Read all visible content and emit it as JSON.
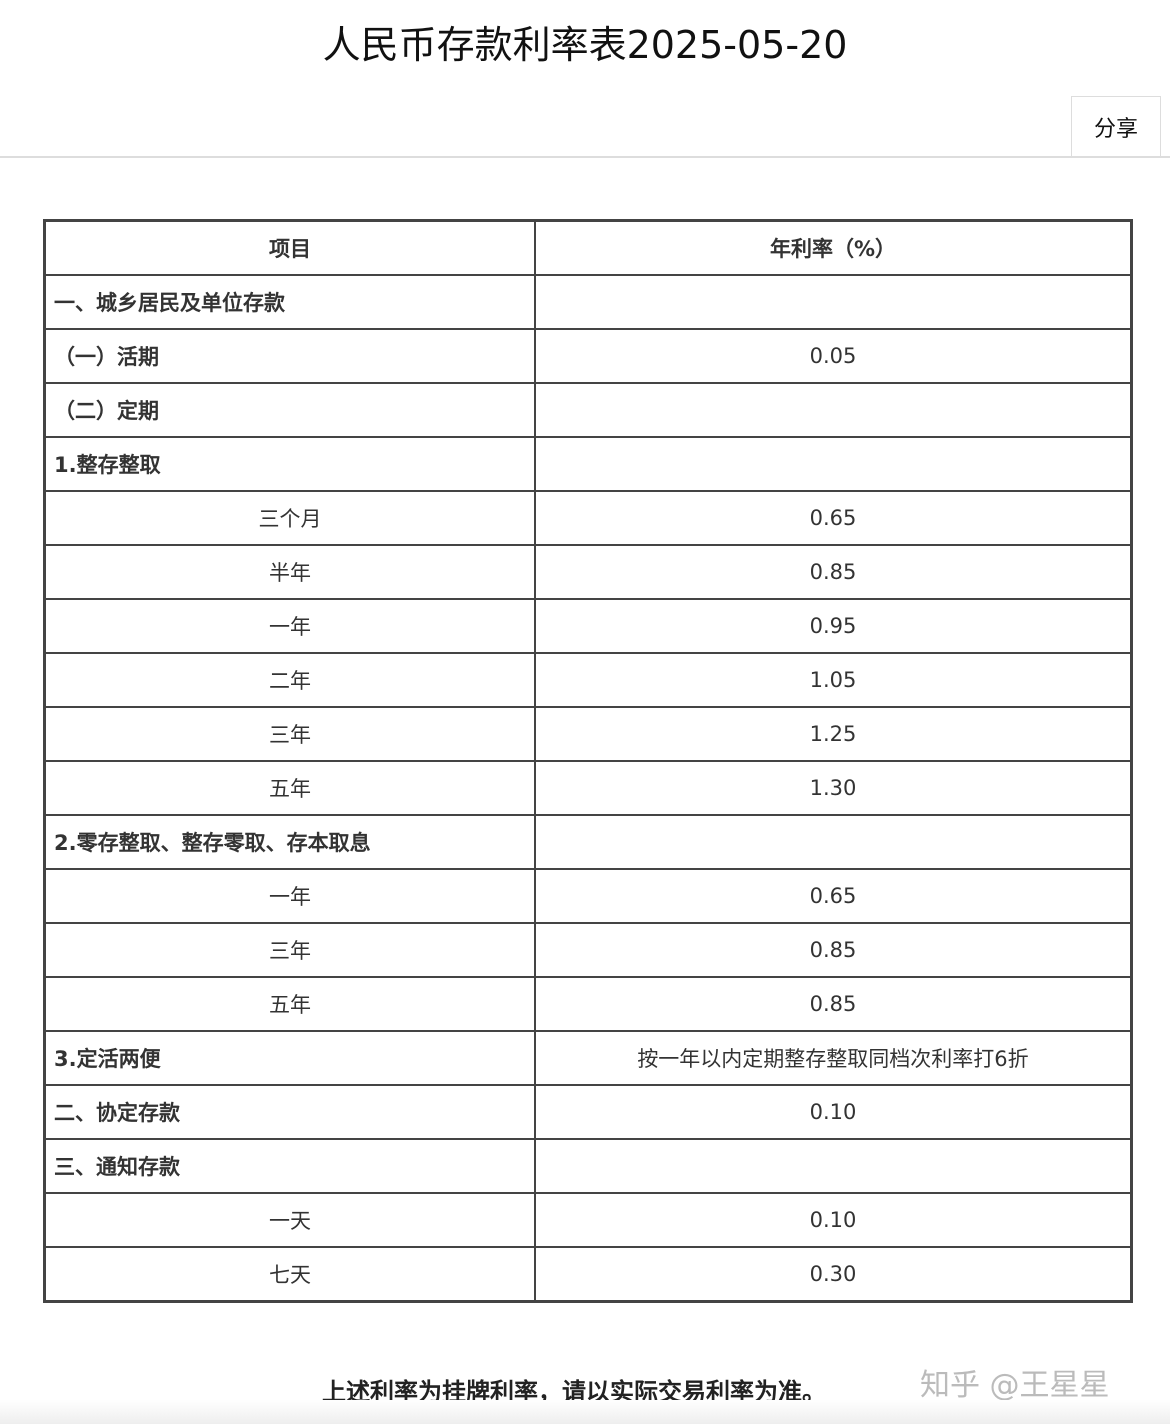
{
  "title": "人民币存款利率表2025-05-20",
  "share_label": "分享",
  "table": {
    "headers": [
      "项目",
      "年利率（%）"
    ],
    "rows": [
      {
        "item": "一、城乡居民及单位存款",
        "rate": "",
        "bold": true
      },
      {
        "item": "（一）活期",
        "rate": "0.05",
        "bold": true
      },
      {
        "item": "（二）定期",
        "rate": "",
        "bold": true
      },
      {
        "item": "1.整存整取",
        "rate": "",
        "bold": true
      },
      {
        "item": "三个月",
        "rate": "0.65",
        "bold": false
      },
      {
        "item": "半年",
        "rate": "0.85",
        "bold": false
      },
      {
        "item": "一年",
        "rate": "0.95",
        "bold": false
      },
      {
        "item": "二年",
        "rate": "1.05",
        "bold": false
      },
      {
        "item": "三年",
        "rate": "1.25",
        "bold": false
      },
      {
        "item": "五年",
        "rate": "1.30",
        "bold": false
      },
      {
        "item": "2.零存整取、整存零取、存本取息",
        "rate": "",
        "bold": true
      },
      {
        "item": "一年",
        "rate": "0.65",
        "bold": false
      },
      {
        "item": "三年",
        "rate": "0.85",
        "bold": false
      },
      {
        "item": "五年",
        "rate": "0.85",
        "bold": false
      },
      {
        "item": "3.定活两便",
        "rate": "按一年以内定期整存整取同档次利率打6折",
        "bold": true
      },
      {
        "item": "二、协定存款",
        "rate": "0.10",
        "bold": true
      },
      {
        "item": "三、通知存款",
        "rate": "",
        "bold": true
      },
      {
        "item": "一天",
        "rate": "0.10",
        "bold": false
      },
      {
        "item": "七天",
        "rate": "0.30",
        "bold": false
      }
    ]
  },
  "note": "上述利率为挂牌利率，请以实际交易利率为准。",
  "watermark": "知乎 @王星星"
}
